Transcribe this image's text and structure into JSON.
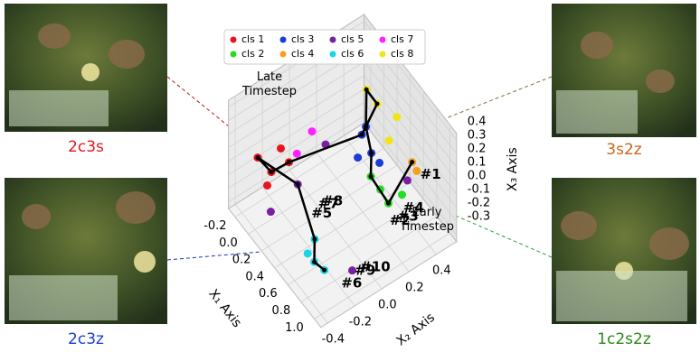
{
  "chart_data": {
    "type": "scatter3d",
    "xlabel": "X₁ Axis",
    "ylabel": "X₂ Axis",
    "zlabel": "X₃ Axis",
    "xlim": [
      -0.3,
      1.1
    ],
    "ylim": [
      -0.45,
      0.55
    ],
    "zlim": [
      -0.35,
      0.45
    ],
    "xticks": [
      -0.2,
      {
        "value": 0,
        "label": "0.0"
      },
      0.2,
      0.4,
      0.6,
      0.8,
      {
        "value": 1,
        "label": "1.0"
      }
    ],
    "yticks": [
      -0.4,
      -0.2,
      {
        "value": 0,
        "label": "0.0"
      },
      0.2,
      0.4
    ],
    "zticks": [
      -0.3,
      -0.2,
      -0.1,
      {
        "value": 0,
        "label": "0.0"
      },
      0.1,
      0.2,
      0.3,
      0.4
    ],
    "grid": true,
    "legend": "upper center",
    "series": [
      {
        "name": "cls 1",
        "color": "#e8141c",
        "x": [
          0,
          0,
          0,
          0,
          0
        ],
        "y": [
          -0.38,
          -0.28,
          -0.21,
          -0.31,
          -0.15
        ],
        "z": [
          0.17,
          0,
          0.13,
          -0.08,
          -0.01
        ]
      },
      {
        "name": "cls 2",
        "color": "#22dd22",
        "x": [
          0.5,
          0.5,
          0.5,
          0.5
        ],
        "y": [
          0.28,
          0.34,
          0.21,
          0.44
        ],
        "z": [
          -0.17,
          -0.31,
          -0.03,
          -0.31
        ]
      },
      {
        "name": "cls 3",
        "color": "#1a3cd8",
        "x": [
          0.2,
          0.2,
          0.2,
          0.2,
          0.2
        ],
        "y": [
          0.29,
          0.36,
          0.26,
          0.42,
          0.32
        ],
        "z": [
          0.04,
          -0.14,
          -0.11,
          -0.25,
          0.08
        ]
      },
      {
        "name": "cls 4",
        "color": "#f5a020",
        "x": [
          0.55,
          0.6
        ],
        "y": [
          0.49,
          0.5
        ],
        "z": [
          -0.07,
          -0.11
        ]
      },
      {
        "name": "cls 5",
        "color": "#7a1fa0",
        "x": [
          0.4,
          0,
          1,
          0.3,
          0.5
        ],
        "y": [
          -0.28,
          0.12,
          -0.17,
          -0.43,
          0.48
        ],
        "z": [
          0.16,
          -0.05,
          -0.17,
          -0.01,
          -0.23
        ]
      },
      {
        "name": "cls 6",
        "color": "#18d6e4",
        "x": [
          1,
          0.9,
          1.05,
          0.8
        ],
        "y": [
          -0.45,
          -0.45,
          -0.4,
          -0.35
        ],
        "z": [
          0.07,
          0.07,
          0.01,
          0.05
        ]
      },
      {
        "name": "cls 7",
        "color": "#ff22ff",
        "x": [
          0.1,
          0
        ],
        "y": [
          -0.14,
          0.02
        ],
        "z": [
          0.11,
          0.11
        ]
      },
      {
        "name": "cls 8",
        "color": "#f2e41a",
        "x": [
          -0.1,
          0,
          0.3,
          0.2
        ],
        "y": [
          0.47,
          0.5,
          0.5,
          0.49
        ],
        "z": [
          0.07,
          0.01,
          0.1,
          -0.13
        ]
      }
    ],
    "trajectory": {
      "x": [
        0.55,
        0.5,
        0.5,
        0.2,
        0.2,
        -0.1,
        0,
        0.2,
        0,
        0,
        0,
        0.4,
        0.8,
        1,
        1.05
      ],
      "y": [
        0.49,
        0.34,
        0.21,
        0.36,
        0.32,
        0.47,
        0.5,
        0.29,
        -0.15,
        -0.28,
        -0.38,
        -0.28,
        -0.35,
        -0.45,
        -0.4
      ],
      "z": [
        -0.07,
        -0.31,
        -0.03,
        -0.14,
        0.08,
        0.07,
        0.01,
        0.04,
        -0.01,
        0,
        0.17,
        0.16,
        0.05,
        0.07,
        0.01
      ]
    },
    "annotations": [
      {
        "text": "#1",
        "x": 0.55,
        "y": 0.55,
        "z": -0.2
      },
      {
        "text": "#2",
        "x": 0.6,
        "y": 0.3,
        "z": -0.35
      },
      {
        "text": "#3",
        "x": 0.6,
        "y": 0.36,
        "z": -0.36
      },
      {
        "text": "#4",
        "x": 0.6,
        "y": 0.4,
        "z": -0.32
      },
      {
        "text": "#5",
        "x": 0.4,
        "y": -0.18,
        "z": -0.12
      },
      {
        "text": "#7",
        "x": 0.4,
        "y": -0.13,
        "z": -0.08
      },
      {
        "text": "#8",
        "x": 0.4,
        "y": -0.1,
        "z": -0.08
      },
      {
        "text": "#6",
        "x": 1.1,
        "y": -0.3,
        "z": -0.12
      },
      {
        "text": "#9",
        "x": 1.1,
        "y": -0.2,
        "z": -0.09
      },
      {
        "text": "#10",
        "x": 1.1,
        "y": -0.16,
        "z": -0.09
      }
    ],
    "late_label": "Late Timestep",
    "early_label": "Early Timestep"
  },
  "panels": [
    {
      "label": "2c3s",
      "color": "#e8141c"
    },
    {
      "label": "2c3z",
      "color": "#1a3cd8"
    },
    {
      "label": "3s2z",
      "color": "#c8641a"
    },
    {
      "label": "1c2s2z",
      "color": "#2a8a1a"
    }
  ]
}
